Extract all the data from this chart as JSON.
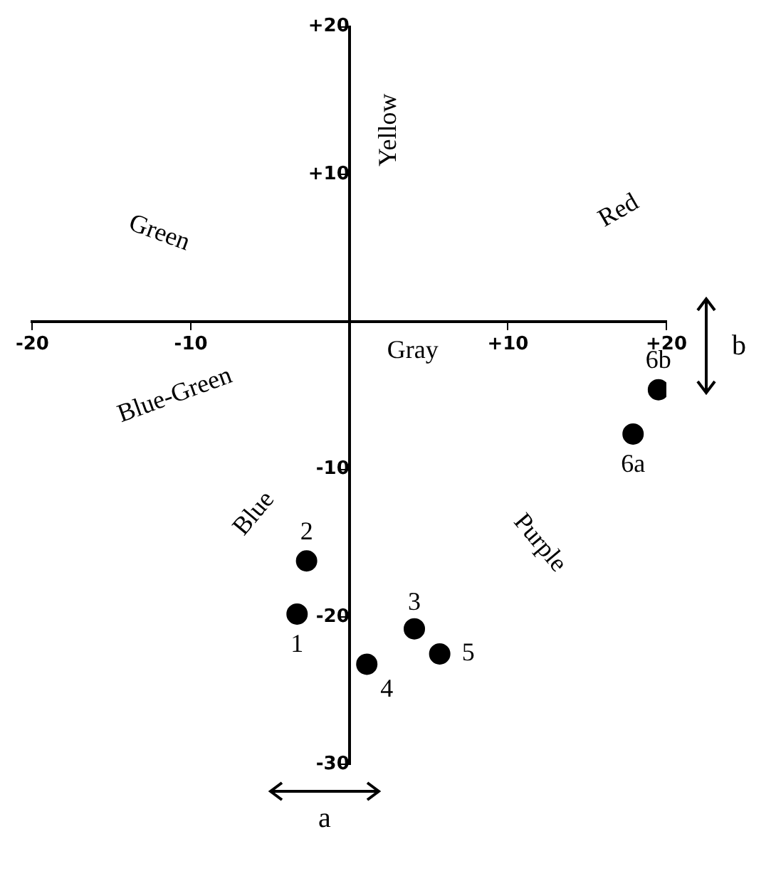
{
  "chart_data": {
    "type": "scatter",
    "xlabel": "a",
    "ylabel": "b",
    "xlim": [
      -20,
      20
    ],
    "ylim": [
      -30,
      20
    ],
    "xticks": [
      {
        "value": -20,
        "label": "-20"
      },
      {
        "value": -10,
        "label": "-10"
      },
      {
        "value": 0,
        "label": null
      },
      {
        "value": 10,
        "label": "+10"
      },
      {
        "value": 20,
        "label": "+20"
      }
    ],
    "yticks": [
      {
        "value": -30,
        "label": "-30"
      },
      {
        "value": -20,
        "label": "-20"
      },
      {
        "value": -10,
        "label": "-10"
      },
      {
        "value": 0,
        "label": null
      },
      {
        "value": 10,
        "label": "+10"
      },
      {
        "value": 20,
        "label": "+20"
      }
    ],
    "annotations": [
      "Yellow",
      "Green",
      "Red",
      "Gray",
      "Blue-Green",
      "Blue",
      "Purple"
    ],
    "series": [
      {
        "name": "1",
        "color": "#000000",
        "x": [
          -3.3
        ],
        "values": [
          -19.8
        ]
      },
      {
        "name": "2",
        "color": "#000000",
        "x": [
          -2.7
        ],
        "values": [
          -16.2
        ]
      },
      {
        "name": "3",
        "color": "#000000",
        "x": [
          4.1
        ],
        "values": [
          -20.8
        ]
      },
      {
        "name": "4",
        "color": "#000000",
        "x": [
          1.1
        ],
        "values": [
          -23.2
        ]
      },
      {
        "name": "5",
        "color": "#000000",
        "x": [
          5.7
        ],
        "values": [
          -22.5
        ]
      },
      {
        "name": "6a",
        "color": "#000000",
        "x": [
          17.9
        ],
        "values": [
          -7.6
        ]
      },
      {
        "name": "6b",
        "color": "#000000",
        "x": [
          19.5
        ],
        "values": [
          -4.6
        ]
      }
    ],
    "marker": "circle",
    "grid": false,
    "legend": false
  }
}
